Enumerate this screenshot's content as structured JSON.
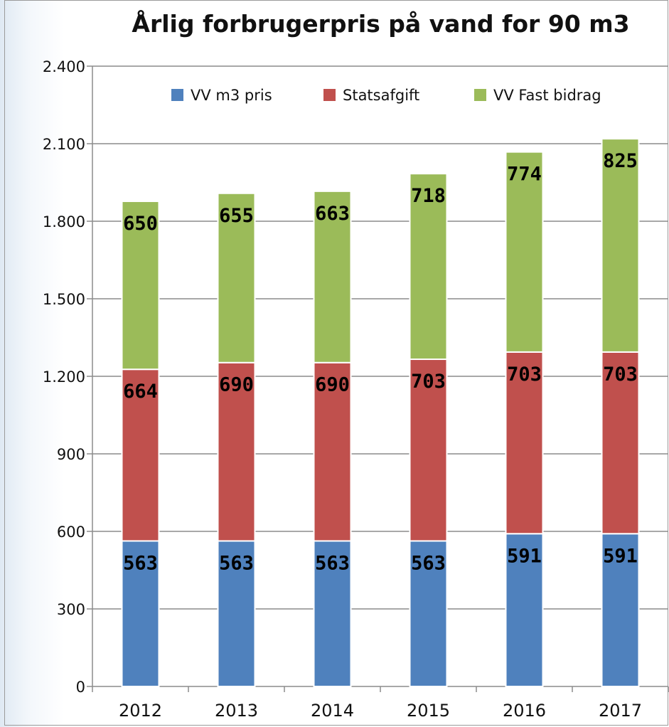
{
  "chart_data": {
    "type": "bar",
    "stacked": true,
    "title": "Årlig forbrugerpris på vand for 90 m3",
    "xlabel": "",
    "ylabel": "",
    "categories": [
      "2012",
      "2013",
      "2014",
      "2015",
      "2016",
      "2017"
    ],
    "series": [
      {
        "name": "VV m3 pris",
        "color": "#4f81bd",
        "values": [
          563,
          563,
          563,
          563,
          591,
          591
        ]
      },
      {
        "name": "Statsafgift",
        "color": "#c0504d",
        "values": [
          664,
          690,
          690,
          703,
          703,
          703
        ]
      },
      {
        "name": "VV Fast bidrag",
        "color": "#9bbb59",
        "values": [
          650,
          655,
          663,
          718,
          774,
          825
        ]
      }
    ],
    "ylim": [
      0,
      2400
    ],
    "yticks": [
      0,
      300,
      600,
      900,
      1200,
      1500,
      1800,
      2100,
      2400
    ],
    "ytick_labels": [
      "0",
      "300",
      "600",
      "900",
      "1.200",
      "1.500",
      "1.800",
      "2.100",
      "2.400"
    ],
    "grid": true,
    "legend_position": "top-right"
  }
}
